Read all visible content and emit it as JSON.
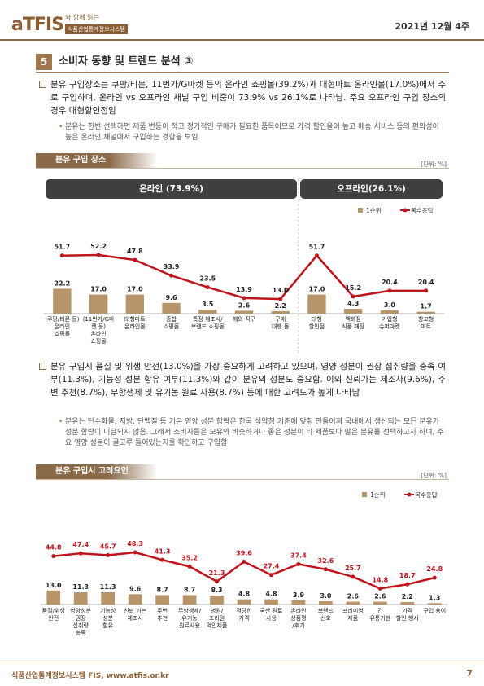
{
  "header": {
    "logo": "aTFIS",
    "tagline": "와 함께 읽는",
    "system": "식품산업통계정보시스템",
    "date": "2021년 12월 4주"
  },
  "section": {
    "number": "5",
    "title": "소비자 동향 및 트렌드 분석 ③"
  },
  "paragraphs": [
    {
      "text": "분유 구입장소는 쿠팡/티몬, 11번가/G마켓 등의 온라인 쇼핑몰(39.2%)과 대형마트 온라인몰(17.0%)에서 주로 구입하며, 온라인 vs 오프라인 채널 구입 비중이 73.9% vs 26.1%로 나타남. 주요 오프라인 구입 장소의 경우 대형할인점임",
      "sub": "분유는 한번 선택하면 제품 변동이 적고 정기적인 구매가 필요한 품목이므로 가격 할인율이 높고 배송 서비스 등의 편의성이 높은 온라인 채널에서 구입하는 경향을 보임"
    },
    {
      "text": "분유 구입시 품질 및 위생 안전(13.0%)을 가장 중요하게 고려하고 있으며, 영양 성분이 권장 섭취량을 충족 여부(11.3%), 기능성 성분 함유 여부(11.3%)와 같이 분유의 성분도 중요함. 이외 신뢰가는 제조사(9.6%), 주변 추천(8.7%), 무항생제 및 유기농 원료 사용(8.7%) 등에 대한 고려도가 높게 나타남",
      "sub": "분유는 탄수화물, 지방, 단백질 등 기본 영양 성분 함량은 한국 식약청 기준에 맞춰 만들어져 국내에서 생산되는 모든 분유가 성분 함량이 미달되지 않음. 그래서 소비자들은 모유와 비슷하거나 좋은 성분이 타 제품보다 많은 분유를 선택하고자 하며, 주요 영양 성분이 골고루 들어있는지를 확인하고 구입함"
    }
  ],
  "chart_data": [
    {
      "type": "combo",
      "title": "분유 구입 장소",
      "unit": "[단위: %]",
      "groups": [
        {
          "name": "온라인 (73.9%)",
          "categories": [
            "(쿠팡/티몬 등)\n온라인\n쇼핑몰",
            "(11번가/G마켓 등)\n온라인\n쇼핑몰",
            "대형마트\n온라인몰",
            "종합\n쇼핑몰",
            "특정 제조사/\n브랜드 쇼핑몰",
            "해외 직구",
            "구매\n대행 몰"
          ]
        },
        {
          "name": "오프라인(26.1%)",
          "categories": [
            "대형\n할인점",
            "백화점\n식품 매장",
            "기업형\n슈퍼마켓",
            "창고형\n마트"
          ]
        }
      ],
      "series": [
        {
          "name": "1순위",
          "type": "bar",
          "color": "#b8946a",
          "values": [
            22.2,
            17.0,
            17.0,
            9.6,
            3.5,
            2.6,
            2.2,
            17.0,
            4.3,
            3.0,
            1.7
          ],
          "value_labels": [
            "22.2",
            "17.0",
            "17.0",
            "9.6",
            "3.5",
            "2.6",
            "2.2",
            "17.0",
            "4.3",
            "3.0",
            "1.7"
          ]
        },
        {
          "name": "복수응답",
          "type": "line",
          "color": "#c0141c",
          "values": [
            51.7,
            52.2,
            47.8,
            33.9,
            23.5,
            13.9,
            13.0,
            51.7,
            15.2,
            20.4,
            20.4
          ],
          "value_labels": [
            "51.7",
            "52.2",
            "47.8",
            "33.9",
            "23.5",
            "13.9",
            "13.0",
            "51.7",
            "15.2",
            "20.4",
            "20.4"
          ]
        }
      ]
    },
    {
      "type": "combo",
      "title": "분유 구입시 고려요인",
      "unit": "[단위: %]",
      "categories": [
        "품질/위생\n안전",
        "영양성분\n권장\n섭취량\n충족",
        "기능성\n성분\n함유",
        "신뢰 가는\n제조사",
        "주변\n추천",
        "무항생제/\n유기농\n원료사용",
        "병원/\n조리원\n먹인제품",
        "적당한\n가격",
        "국산 원료\n사용",
        "온라인\n상품평\n/후기",
        "브랜드\n선호",
        "프리미엄\n제품",
        "긴\n유통기한",
        "가격\n할인 행사",
        "구입 용이"
      ],
      "series": [
        {
          "name": "1순위",
          "type": "bar",
          "color": "#b8946a",
          "values": [
            13.0,
            11.3,
            11.3,
            9.6,
            8.7,
            8.7,
            8.3,
            4.8,
            4.8,
            3.9,
            3.0,
            2.6,
            2.6,
            2.2,
            1.3
          ],
          "value_labels": [
            "13.0",
            "11.3",
            "11.3",
            "9.6",
            "8.7",
            "8.7",
            "8.3",
            "4.8",
            "4.8",
            "3.9",
            "3.0",
            "2.6",
            "2.6",
            "2.2",
            "1.3"
          ]
        },
        {
          "name": "복수응답",
          "type": "line",
          "color": "#c0141c",
          "values": [
            44.8,
            47.4,
            45.7,
            48.3,
            41.3,
            35.2,
            21.3,
            39.6,
            27.4,
            37.4,
            32.6,
            25.7,
            14.8,
            18.7,
            24.8
          ],
          "value_labels": [
            "44.8",
            "47.4",
            "45.7",
            "48.3",
            "41.3",
            "35.2",
            "21.3",
            "39.6",
            "27.4",
            "37.4",
            "32.6",
            "25.7",
            "14.8",
            "18.7",
            "24.8"
          ]
        }
      ]
    }
  ],
  "footer": {
    "text": "식품산업통계정보시스템 FIS, www.atfis.or.kr",
    "page": "7"
  }
}
